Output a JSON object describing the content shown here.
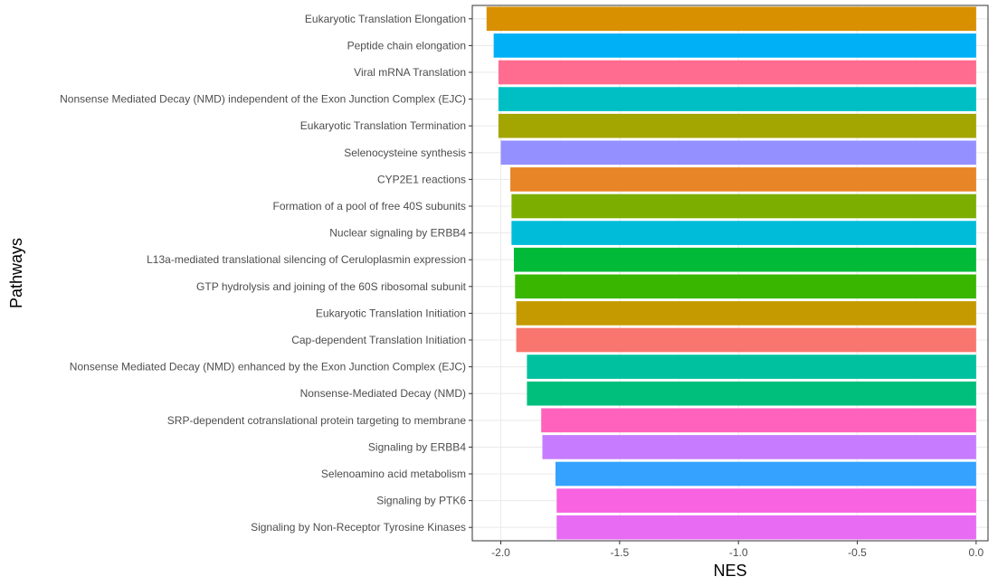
{
  "chart_data": {
    "type": "bar",
    "orientation": "horizontal",
    "xlabel": "NES",
    "ylabel": "Pathways",
    "xlim": [
      -2.12,
      0.05
    ],
    "xticks": [
      -2.0,
      -1.5,
      -1.0,
      -0.5,
      0.0
    ],
    "xtick_labels": [
      "-2.0",
      "-1.5",
      "-1.0",
      "-0.5",
      "0.0"
    ],
    "grid": true,
    "legend": "none",
    "categories": [
      "Eukaryotic Translation Elongation",
      "Peptide chain elongation",
      "Viral mRNA Translation",
      "Nonsense Mediated Decay (NMD) independent of the Exon Junction Complex (EJC)",
      "Eukaryotic Translation Termination",
      "Selenocysteine synthesis",
      "CYP2E1 reactions",
      "Formation of a pool of free 40S subunits",
      "Nuclear signaling by ERBB4",
      "L13a-mediated translational silencing of Ceruloplasmin expression",
      "GTP hydrolysis and joining of the 60S ribosomal subunit",
      "Eukaryotic Translation Initiation",
      "Cap-dependent Translation Initiation",
      "Nonsense Mediated Decay (NMD) enhanced by the Exon Junction Complex (EJC)",
      "Nonsense-Mediated Decay (NMD)",
      "SRP-dependent cotranslational protein targeting to membrane",
      "Signaling by ERBB4",
      "Selenoamino acid metabolism",
      "Signaling by PTK6",
      "Signaling by Non-Receptor Tyrosine Kinases"
    ],
    "values": [
      -2.06,
      -2.03,
      -2.01,
      -2.01,
      -2.01,
      -2.0,
      -1.96,
      -1.955,
      -1.955,
      -1.945,
      -1.94,
      -1.935,
      -1.935,
      -1.89,
      -1.89,
      -1.83,
      -1.825,
      -1.77,
      -1.765,
      -1.765
    ],
    "colors": [
      "#D89000",
      "#00B0F6",
      "#FF6C90",
      "#00BFC4",
      "#A3A500",
      "#9590FF",
      "#E88526",
      "#7CAE00",
      "#00BCD8",
      "#00BA38",
      "#39B600",
      "#C49A00",
      "#F8766D",
      "#00C19F",
      "#00BF7D",
      "#FF62BC",
      "#C77CFF",
      "#35A2FF",
      "#F763E0",
      "#E76BF3"
    ]
  }
}
